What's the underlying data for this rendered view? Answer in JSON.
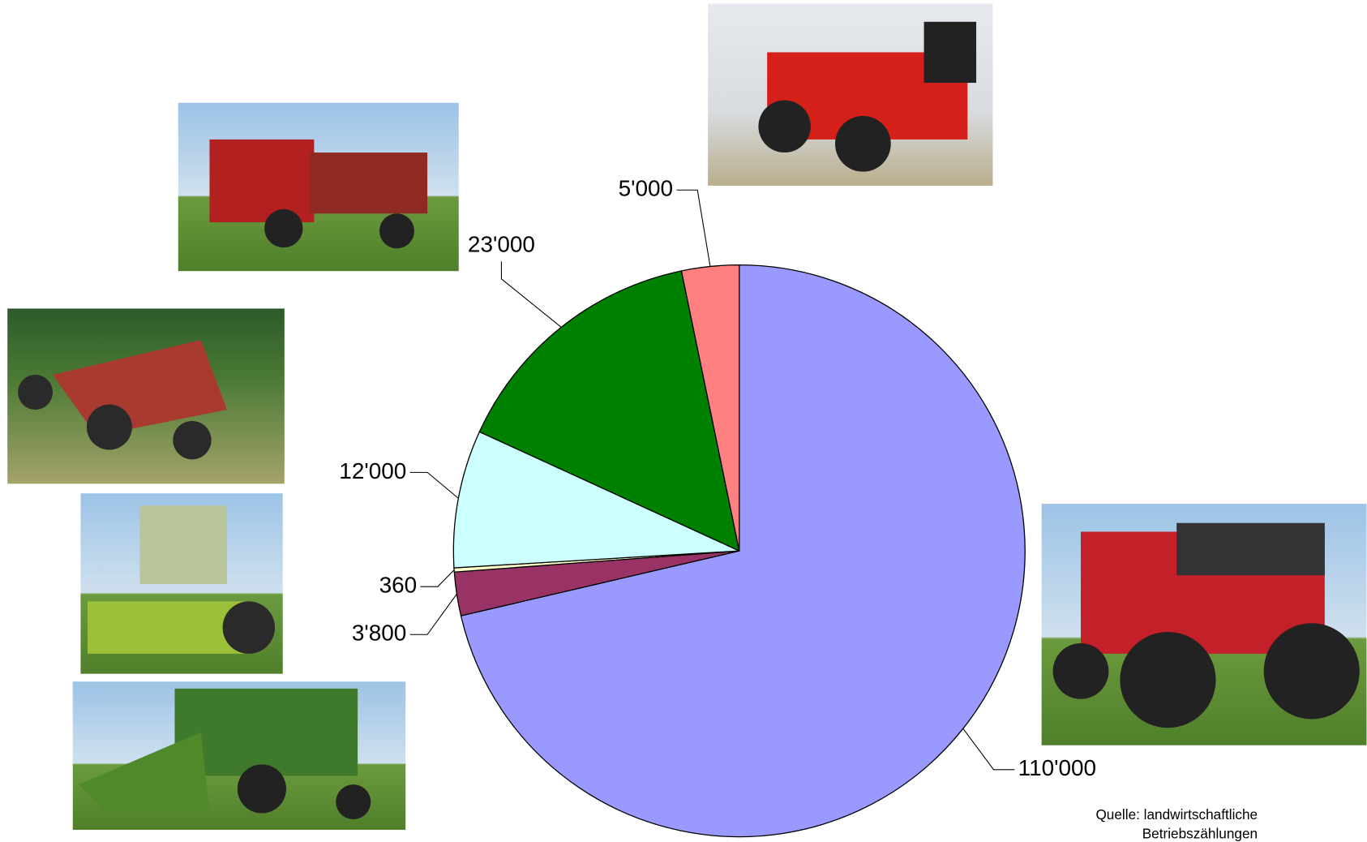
{
  "chart_data": {
    "type": "pie",
    "values": [
      110000,
      3800,
      360,
      12000,
      23000,
      5000
    ],
    "value_labels": [
      "110'000",
      "3'800",
      "360",
      "12'000",
      "23'000",
      "5'000"
    ],
    "colors": [
      "#9999ff",
      "#993366",
      "#ffffcc",
      "#ccffff",
      "#008000",
      "#ff8080"
    ],
    "source": [
      "Quelle: landwirtschaftliche",
      "Betriebszählungen"
    ]
  }
}
